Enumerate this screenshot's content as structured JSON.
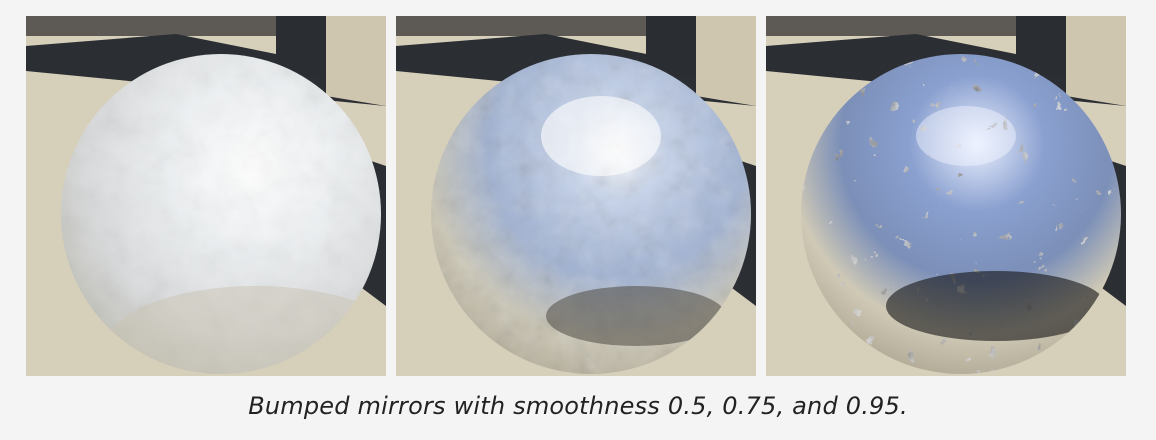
{
  "figure": {
    "caption": "Bumped mirrors with smoothness 0.5, 0.75, and 0.95.",
    "panels": [
      {
        "smoothness": 0.5
      },
      {
        "smoothness": 0.75
      },
      {
        "smoothness": 0.95
      }
    ]
  },
  "colors": {
    "floor_light": "#d9d2bf",
    "floor_shadow": "#c9c0a8",
    "dark_wall": "#2b2e33",
    "sky_blue": "#9fb3d8",
    "sphere_highlight": "#ffffff"
  }
}
